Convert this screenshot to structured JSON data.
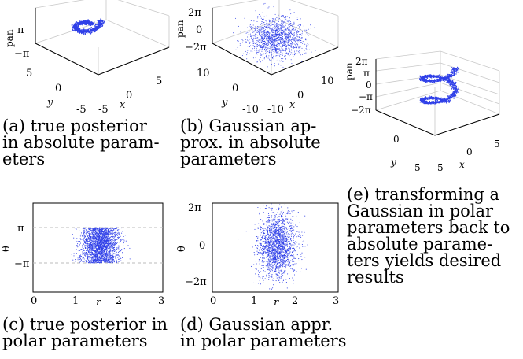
{
  "figure": {
    "panels": [
      {
        "id": "a",
        "caption_lines": [
          "(a) true posterior",
          "in absolute param-",
          "eters"
        ],
        "axes": {
          "x": "x",
          "y": "y",
          "z": "pan"
        },
        "x_ticks": [
          "-5",
          "5"
        ],
        "y_ticks": [
          "-5",
          "0",
          "5"
        ],
        "z_ticks": [
          "π",
          "−π"
        ],
        "zero_label": "0"
      },
      {
        "id": "b",
        "caption_lines": [
          "(b) Gaussian ap-",
          "prox. in absolute",
          "parameters"
        ],
        "axes": {
          "x": "x",
          "y": "y",
          "z": "pan"
        },
        "x_ticks": [
          "-10",
          "10"
        ],
        "y_ticks": [
          "-10",
          "0",
          "10"
        ],
        "z_ticks": [
          "2π",
          "0",
          "−2π"
        ],
        "zero_label": "0"
      },
      {
        "id": "c",
        "caption_lines": [
          "(c) true posterior in",
          "polar parameters"
        ],
        "axes": {
          "x": "r",
          "y": "θ"
        },
        "x_ticks": [
          "0",
          "1",
          "2",
          "3"
        ],
        "y_ticks": [
          "π",
          "−π"
        ]
      },
      {
        "id": "d",
        "caption_lines": [
          "(d) Gaussian appr.",
          "in polar parameters"
        ],
        "axes": {
          "x": "r",
          "y": "θ"
        },
        "x_ticks": [
          "0",
          "1",
          "2",
          "3"
        ],
        "y_ticks": [
          "2π",
          "0",
          "−2π"
        ]
      },
      {
        "id": "e",
        "caption_lines": [
          "(e) transforming a",
          "Gaussian in polar",
          "parameters back to",
          "absolute parame-",
          "ters yields desired",
          "results"
        ],
        "axes": {
          "x": "x",
          "y": "y",
          "z": "pan"
        },
        "x_ticks": [
          "-5",
          "5"
        ],
        "y_ticks": [
          "-5",
          "0"
        ],
        "z_ticks": [
          "2π",
          "π",
          "0",
          "−π",
          "−2π"
        ],
        "extra_ticks": [
          "0",
          "5"
        ]
      }
    ]
  },
  "colors": {
    "points": "#3040e8",
    "axes": "#000000",
    "grid": "#c8c8c8"
  }
}
